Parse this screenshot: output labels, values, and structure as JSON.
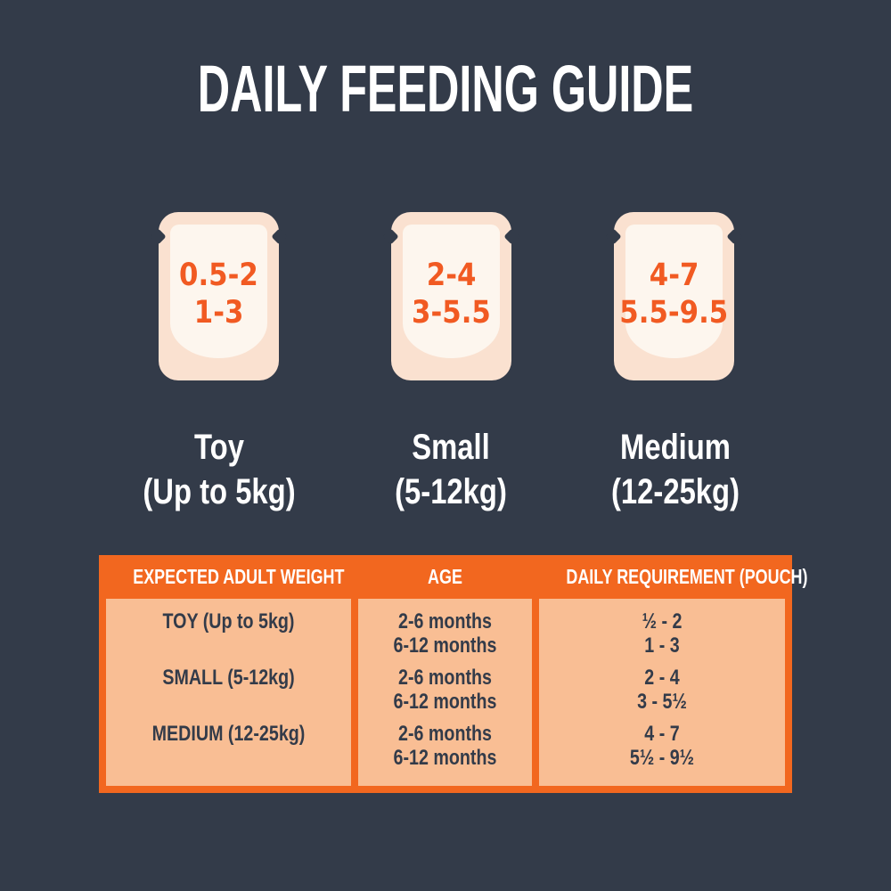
{
  "title": "DAILY FEEDING GUIDE",
  "pouches": [
    {
      "size": "Toy",
      "weight_range": "(Up to 5kg)",
      "pouch_line1": "0.5-2",
      "pouch_line2": "1-3"
    },
    {
      "size": "Small",
      "weight_range": "(5-12kg)",
      "pouch_line1": "2-4",
      "pouch_line2": "3-5.5"
    },
    {
      "size": "Medium",
      "weight_range": "(12-25kg)",
      "pouch_line1": "4-7",
      "pouch_line2": "5.5-9.5"
    }
  ],
  "table": {
    "headers": [
      "EXPECTED ADULT WEIGHT",
      "AGE",
      "DAILY REQUIREMENT (POUCH)"
    ],
    "rows": [
      {
        "weight": "TOY (Up to 5kg)",
        "ages": [
          "2-6 months",
          "6-12 months"
        ],
        "requirements": [
          "½ - 2",
          "1 - 3"
        ]
      },
      {
        "weight": "SMALL (5-12kg)",
        "ages": [
          "2-6 months",
          "6-12 months"
        ],
        "requirements": [
          "2 - 4",
          "3 - 5½"
        ]
      },
      {
        "weight": "MEDIUM (12-25kg)",
        "ages": [
          "2-6 months",
          "6-12 months"
        ],
        "requirements": [
          "4 - 7",
          "5½ - 9½"
        ]
      }
    ]
  },
  "colors": {
    "background": "#333B49",
    "accent_orange": "#F2671F",
    "number_orange": "#F15A22",
    "table_body_peach": "#F9BE94",
    "pouch_outer_peach": "#FAE1D0",
    "pouch_inner_cream": "#FDF6EE",
    "text_white": "#FFFFFF",
    "text_dark": "#333B49"
  }
}
